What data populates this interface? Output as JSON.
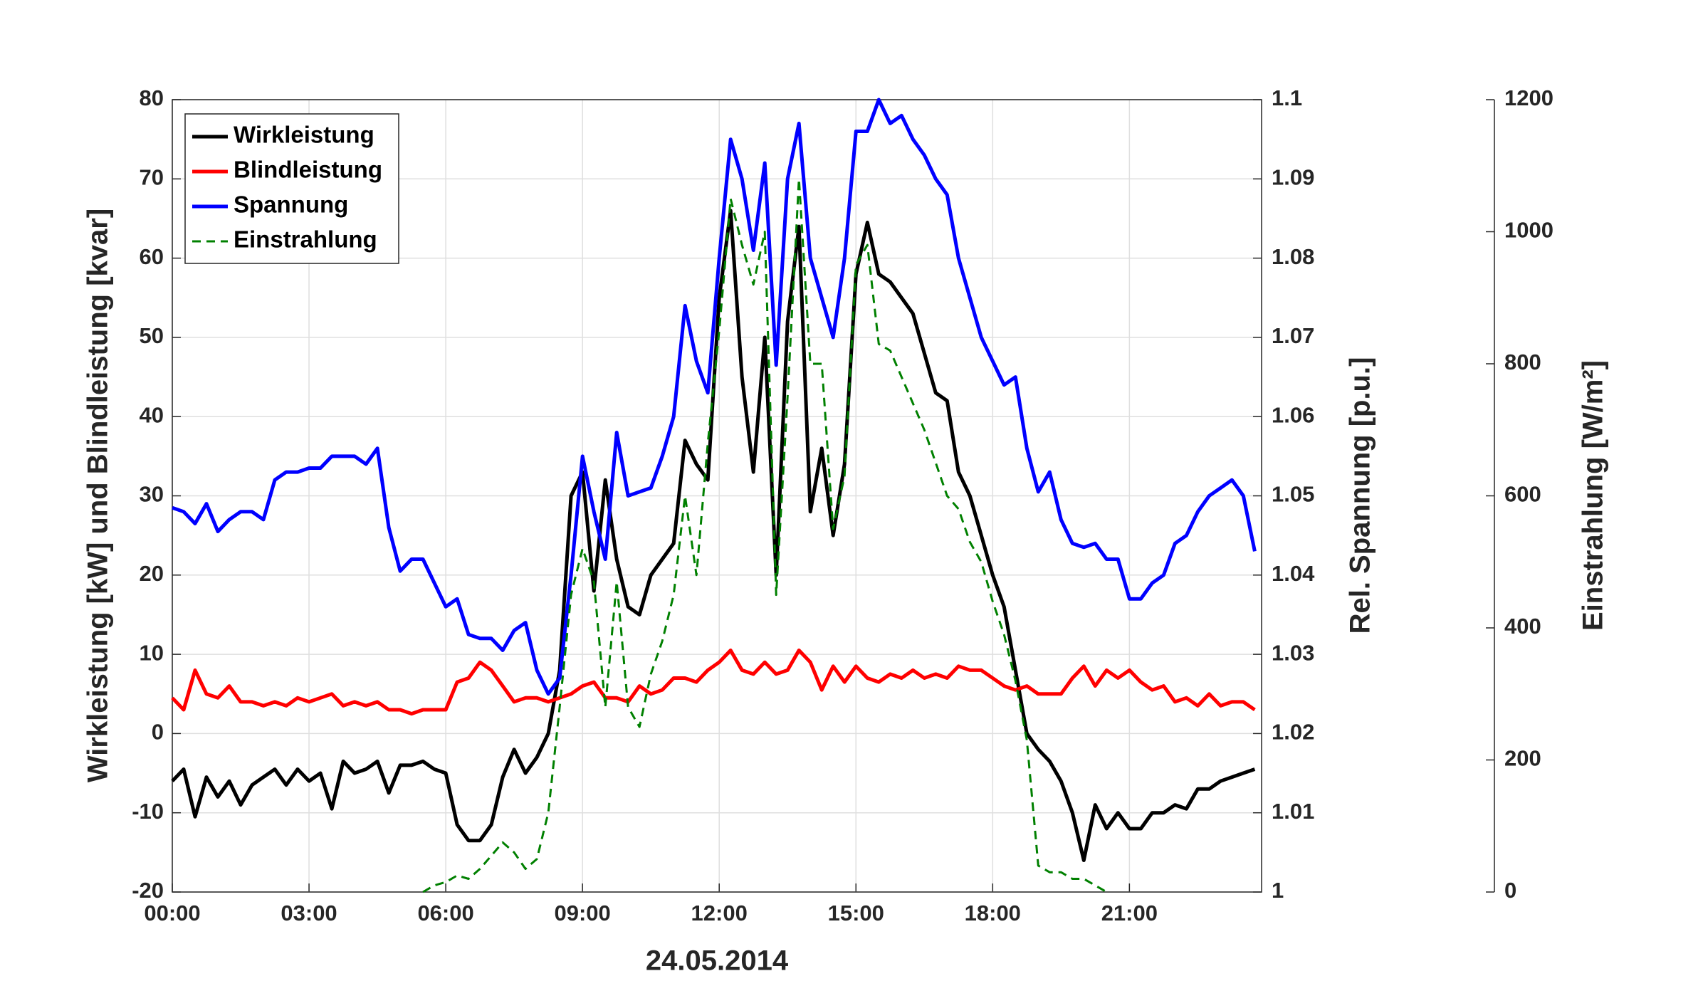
{
  "chart_data": {
    "type": "line",
    "xlabel": "24.05.2014",
    "ylabel": "Wirkleistung [kW] und Blindleistung [kvar]",
    "y2label": "Rel. Spannung [p.u.]",
    "y3label": "Einstrahlung [W/m²]",
    "grid": true,
    "legend": "upper left",
    "x": [
      0,
      0.25,
      0.5,
      0.75,
      1,
      1.25,
      1.5,
      1.75,
      2,
      2.25,
      2.5,
      2.75,
      3,
      3.25,
      3.5,
      3.75,
      4,
      4.25,
      4.5,
      4.75,
      5,
      5.25,
      5.5,
      5.75,
      6,
      6.25,
      6.5,
      6.75,
      7,
      7.25,
      7.5,
      7.75,
      8,
      8.25,
      8.5,
      8.75,
      9,
      9.25,
      9.5,
      9.75,
      10,
      10.25,
      10.5,
      10.75,
      11,
      11.25,
      11.5,
      11.75,
      12,
      12.25,
      12.5,
      12.75,
      13,
      13.25,
      13.5,
      13.75,
      14,
      14.25,
      14.5,
      14.75,
      15,
      15.25,
      15.5,
      15.75,
      16,
      16.25,
      16.5,
      16.75,
      17,
      17.25,
      17.5,
      17.75,
      18,
      18.25,
      18.5,
      18.75,
      19,
      19.25,
      19.5,
      19.75,
      20,
      20.25,
      20.5,
      20.75,
      21,
      21.25,
      21.5,
      21.75,
      22,
      22.25,
      22.5,
      22.75,
      23,
      23.25,
      23.5,
      23.75
    ],
    "xlim": [
      0,
      23.9
    ],
    "xticks": [
      {
        "value": 0,
        "label": "00:00"
      },
      {
        "value": 3,
        "label": "03:00"
      },
      {
        "value": 6,
        "label": "06:00"
      },
      {
        "value": 9,
        "label": "09:00"
      },
      {
        "value": 12,
        "label": "12:00"
      },
      {
        "value": 15,
        "label": "15:00"
      },
      {
        "value": 18,
        "label": "18:00"
      },
      {
        "value": 21,
        "label": "21:00"
      }
    ],
    "ylim": [
      -20,
      80
    ],
    "yticks": [
      -20,
      -10,
      0,
      10,
      20,
      30,
      40,
      50,
      60,
      70,
      80
    ],
    "y2lim": [
      1,
      1.1
    ],
    "y2ticks": [
      1,
      1.01,
      1.02,
      1.03,
      1.04,
      1.05,
      1.06,
      1.07,
      1.08,
      1.09,
      1.1
    ],
    "y3lim": [
      0,
      1200
    ],
    "y3ticks": [
      0,
      200,
      400,
      600,
      800,
      1000,
      1200
    ],
    "series": [
      {
        "name": "Wirkleistung",
        "color": "#000000",
        "dash": "solid",
        "axis": "y",
        "values": [
          -6,
          -4.5,
          -10.5,
          -5.5,
          -8,
          -6,
          -9,
          -6.5,
          -5.5,
          -4.5,
          -6.5,
          -4.5,
          -6,
          -5,
          -9.5,
          -3.5,
          -5,
          -4.5,
          -3.5,
          -7.5,
          -4,
          -4,
          -3.5,
          -4.5,
          -5,
          -11.5,
          -13.5,
          -13.5,
          -11.5,
          -5.5,
          -2,
          -5,
          -3,
          0,
          8,
          30,
          33,
          18,
          32,
          22,
          16,
          15,
          20,
          22,
          24,
          37,
          34,
          32,
          55,
          66,
          45,
          33,
          50,
          20,
          52,
          64,
          28,
          36,
          25,
          34,
          58,
          64.5,
          58,
          57,
          55,
          53,
          48,
          43,
          42,
          33,
          30,
          25,
          20,
          16,
          8,
          0,
          -2,
          -3.5,
          -6,
          -10,
          -16,
          -9,
          -12,
          -10,
          -12,
          -12,
          -10,
          -10,
          -9,
          -9.5,
          -7,
          -7,
          -6,
          -5.5,
          -5,
          -4.5
        ]
      },
      {
        "name": "Blindleistung",
        "color": "#ff0000",
        "dash": "solid",
        "axis": "y",
        "values": [
          4.5,
          3,
          8,
          5,
          4.5,
          6,
          4,
          4,
          3.5,
          4,
          3.5,
          4.5,
          4,
          4.5,
          5,
          3.5,
          4,
          3.5,
          4,
          3,
          3,
          2.5,
          3,
          3,
          3,
          6.5,
          7,
          9,
          8,
          6,
          4,
          4.5,
          4.5,
          4,
          4.5,
          5,
          6,
          6.5,
          4.5,
          4.5,
          4,
          6,
          5,
          5.5,
          7,
          7,
          6.5,
          8,
          9,
          10.5,
          8,
          7.5,
          9,
          7.5,
          8,
          10.5,
          9,
          5.5,
          8.5,
          6.5,
          8.5,
          7,
          6.5,
          7.5,
          7,
          8,
          7,
          7.5,
          7,
          8.5,
          8,
          8,
          7,
          6,
          5.5,
          6,
          5,
          5,
          5,
          7,
          8.5,
          6,
          8,
          7,
          8,
          6.5,
          5.5,
          6,
          4,
          4.5,
          3.5,
          5,
          3.5,
          4,
          4,
          3
        ]
      },
      {
        "name": "Spannung",
        "color": "#0000ff",
        "dash": "solid",
        "axis": "y2",
        "values": [
          1.0485,
          1.048,
          1.0465,
          1.049,
          1.0455,
          1.047,
          1.048,
          1.048,
          1.047,
          1.052,
          1.053,
          1.053,
          1.0535,
          1.0535,
          1.055,
          1.055,
          1.055,
          1.054,
          1.056,
          1.046,
          1.0405,
          1.042,
          1.042,
          1.039,
          1.036,
          1.037,
          1.0325,
          1.032,
          1.032,
          1.0305,
          1.033,
          1.034,
          1.028,
          1.025,
          1.027,
          1.04,
          1.055,
          1.048,
          1.042,
          1.058,
          1.05,
          1.0505,
          1.051,
          1.055,
          1.06,
          1.074,
          1.067,
          1.063,
          1.08,
          1.095,
          1.09,
          1.081,
          1.092,
          1.0665,
          1.09,
          1.097,
          1.08,
          1.075,
          1.07,
          1.08,
          1.096,
          1.096,
          1.1,
          1.097,
          1.098,
          1.095,
          1.093,
          1.09,
          1.088,
          1.08,
          1.075,
          1.07,
          1.067,
          1.064,
          1.065,
          1.056,
          1.0505,
          1.053,
          1.047,
          1.044,
          1.0435,
          1.044,
          1.042,
          1.042,
          1.037,
          1.037,
          1.039,
          1.04,
          1.044,
          1.045,
          1.048,
          1.05,
          1.051,
          1.052,
          1.05,
          1.043
        ]
      },
      {
        "name": "Einstrahlung",
        "color": "#008000",
        "dash": "dashed",
        "axis": "y3",
        "values": [
          null,
          null,
          null,
          null,
          null,
          null,
          null,
          null,
          null,
          null,
          null,
          null,
          null,
          null,
          null,
          null,
          null,
          null,
          null,
          null,
          null,
          null,
          0,
          10,
          15,
          25,
          20,
          35,
          55,
          75,
          60,
          35,
          50,
          120,
          280,
          450,
          520,
          470,
          280,
          470,
          280,
          250,
          330,
          380,
          450,
          600,
          480,
          680,
          850,
          1050,
          980,
          920,
          1000,
          450,
          750,
          1080,
          800,
          800,
          550,
          630,
          950,
          980,
          830,
          820,
          780,
          740,
          700,
          650,
          600,
          580,
          530,
          500,
          440,
          390,
          320,
          230,
          40,
          30,
          30,
          20,
          20,
          10,
          0,
          null,
          null,
          null,
          null,
          null,
          null,
          null,
          null,
          null,
          null,
          null,
          null,
          null
        ]
      }
    ]
  }
}
